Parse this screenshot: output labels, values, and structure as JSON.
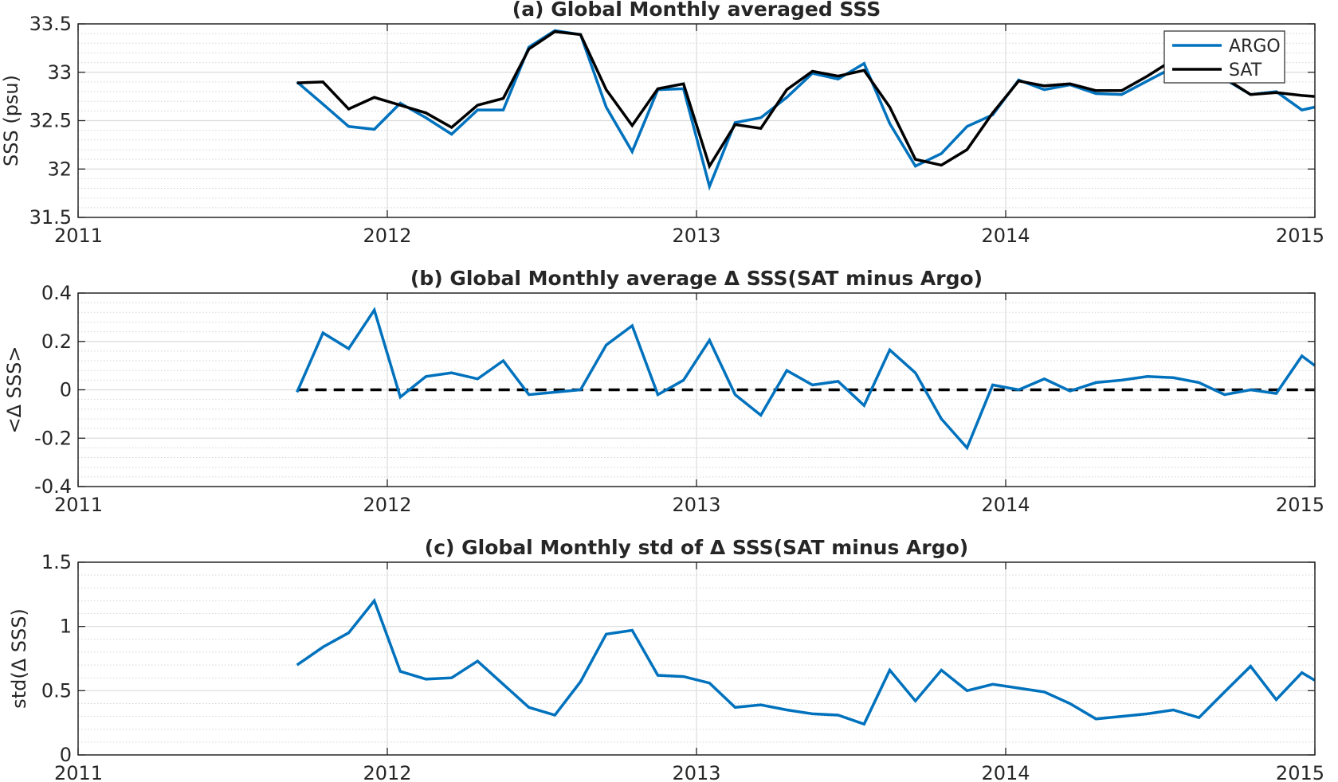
{
  "chart_data": [
    {
      "type": "line",
      "title": "(a) Global Monthly averaged SSS",
      "xlabel": "",
      "ylabel": "SSS (psu)",
      "xlim": [
        2011,
        2015
      ],
      "ylim": [
        31.5,
        33.5
      ],
      "xticks": [
        "2011",
        "2012",
        "2013",
        "2014",
        "2015"
      ],
      "yticks": [
        "31.5",
        "32",
        "32.5",
        "33",
        "33.5"
      ],
      "grid": true,
      "legend_position": "top-right",
      "series": [
        {
          "name": "ARGO",
          "color": "#0072BD",
          "x": [
            2011.708,
            2011.792,
            2011.875,
            2011.958,
            2012.042,
            2012.125,
            2012.208,
            2012.292,
            2012.375,
            2012.458,
            2012.542,
            2012.625,
            2012.708,
            2012.792,
            2012.875,
            2012.958,
            2013.042,
            2013.125,
            2013.208,
            2013.292,
            2013.375,
            2013.458,
            2013.542,
            2013.625,
            2013.708,
            2013.792,
            2013.875,
            2013.958,
            2014.042,
            2014.125,
            2014.208,
            2014.292,
            2014.375,
            2014.458,
            2014.542,
            2014.625,
            2014.708,
            2014.792,
            2014.875,
            2014.958,
            2015.0
          ],
          "y": [
            32.9,
            32.67,
            32.44,
            32.41,
            32.68,
            32.53,
            32.36,
            32.61,
            32.61,
            33.26,
            33.43,
            33.39,
            32.64,
            32.18,
            32.82,
            32.83,
            31.82,
            32.48,
            32.53,
            32.74,
            32.99,
            32.93,
            33.09,
            32.47,
            32.03,
            32.16,
            32.44,
            32.56,
            32.92,
            32.82,
            32.87,
            32.78,
            32.77,
            32.91,
            33.05,
            33.1,
            32.93,
            32.77,
            32.8,
            32.61,
            32.64
          ]
        },
        {
          "name": "SAT",
          "color": "#000000",
          "x": [
            2011.708,
            2011.792,
            2011.875,
            2011.958,
            2012.042,
            2012.125,
            2012.208,
            2012.292,
            2012.375,
            2012.458,
            2012.542,
            2012.625,
            2012.708,
            2012.792,
            2012.875,
            2012.958,
            2013.042,
            2013.125,
            2013.208,
            2013.292,
            2013.375,
            2013.458,
            2013.542,
            2013.625,
            2013.708,
            2013.792,
            2013.875,
            2013.958,
            2014.042,
            2014.125,
            2014.208,
            2014.292,
            2014.375,
            2014.458,
            2014.542,
            2014.625,
            2014.708,
            2014.792,
            2014.875,
            2014.958,
            2015.0
          ],
          "y": [
            32.89,
            32.9,
            32.62,
            32.74,
            32.66,
            32.58,
            32.43,
            32.66,
            32.73,
            33.24,
            33.42,
            33.39,
            32.82,
            32.45,
            32.83,
            32.88,
            32.03,
            32.46,
            32.42,
            32.82,
            33.01,
            32.96,
            33.02,
            32.64,
            32.1,
            32.04,
            32.2,
            32.58,
            32.91,
            32.86,
            32.88,
            32.81,
            32.81,
            32.96,
            33.13,
            33.06,
            32.94,
            32.77,
            32.79,
            32.76,
            32.75
          ]
        }
      ]
    },
    {
      "type": "line",
      "title": "(b) Global Monthly average Δ SSS(SAT minus Argo)",
      "xlabel": "",
      "ylabel": "<Δ SSS>",
      "xlim": [
        2011,
        2015
      ],
      "ylim": [
        -0.4,
        0.4
      ],
      "xticks": [
        "2011",
        "2012",
        "2013",
        "2014",
        "2015"
      ],
      "yticks": [
        "-0.4",
        "-0.2",
        "0",
        "0.2",
        "0.4"
      ],
      "grid": true,
      "reference_line": {
        "y": 0,
        "style": "dashed",
        "color": "#000000"
      },
      "series": [
        {
          "name": "",
          "color": "#0072BD",
          "x": [
            2011.708,
            2011.792,
            2011.875,
            2011.958,
            2012.042,
            2012.125,
            2012.208,
            2012.292,
            2012.375,
            2012.458,
            2012.542,
            2012.625,
            2012.708,
            2012.792,
            2012.875,
            2012.958,
            2013.042,
            2013.125,
            2013.208,
            2013.292,
            2013.375,
            2013.458,
            2013.542,
            2013.625,
            2013.708,
            2013.792,
            2013.875,
            2013.958,
            2014.042,
            2014.125,
            2014.208,
            2014.292,
            2014.375,
            2014.458,
            2014.542,
            2014.625,
            2014.708,
            2014.792,
            2014.875,
            2014.958,
            2015.0
          ],
          "y": [
            -0.01,
            0.235,
            0.17,
            0.33,
            -0.03,
            0.055,
            0.07,
            0.045,
            0.12,
            -0.02,
            -0.01,
            0.0,
            0.185,
            0.265,
            -0.02,
            0.04,
            0.205,
            -0.02,
            -0.105,
            0.08,
            0.02,
            0.035,
            -0.065,
            0.165,
            0.07,
            -0.12,
            -0.24,
            0.02,
            0.0,
            0.045,
            -0.005,
            0.03,
            0.04,
            0.055,
            0.05,
            0.03,
            -0.02,
            0.0,
            -0.015,
            0.14,
            0.1
          ]
        }
      ]
    },
    {
      "type": "line",
      "title": "(c) Global Monthly std of Δ SSS(SAT minus Argo)",
      "xlabel": "",
      "ylabel": "std(Δ SSS)",
      "xlim": [
        2011,
        2015
      ],
      "ylim": [
        0,
        1.5
      ],
      "xticks": [
        "2011",
        "2012",
        "2013",
        "2014",
        "2015"
      ],
      "yticks": [
        "0",
        "0.5",
        "1",
        "1.5"
      ],
      "grid": true,
      "series": [
        {
          "name": "",
          "color": "#0072BD",
          "x": [
            2011.708,
            2011.792,
            2011.875,
            2011.958,
            2012.042,
            2012.125,
            2012.208,
            2012.292,
            2012.375,
            2012.458,
            2012.542,
            2012.625,
            2012.708,
            2012.792,
            2012.875,
            2012.958,
            2013.042,
            2013.125,
            2013.208,
            2013.292,
            2013.375,
            2013.458,
            2013.542,
            2013.625,
            2013.708,
            2013.792,
            2013.875,
            2013.958,
            2014.042,
            2014.125,
            2014.208,
            2014.292,
            2014.375,
            2014.458,
            2014.542,
            2014.625,
            2014.708,
            2014.792,
            2014.875,
            2014.958,
            2015.0
          ],
          "y": [
            0.7,
            0.84,
            0.95,
            1.2,
            0.65,
            0.59,
            0.6,
            0.73,
            0.55,
            0.37,
            0.31,
            0.57,
            0.94,
            0.97,
            0.62,
            0.61,
            0.56,
            0.37,
            0.39,
            0.35,
            0.32,
            0.31,
            0.24,
            0.66,
            0.42,
            0.66,
            0.5,
            0.55,
            0.52,
            0.49,
            0.4,
            0.28,
            0.3,
            0.32,
            0.35,
            0.29,
            0.49,
            0.69,
            0.43,
            0.64,
            0.58
          ]
        }
      ]
    }
  ]
}
